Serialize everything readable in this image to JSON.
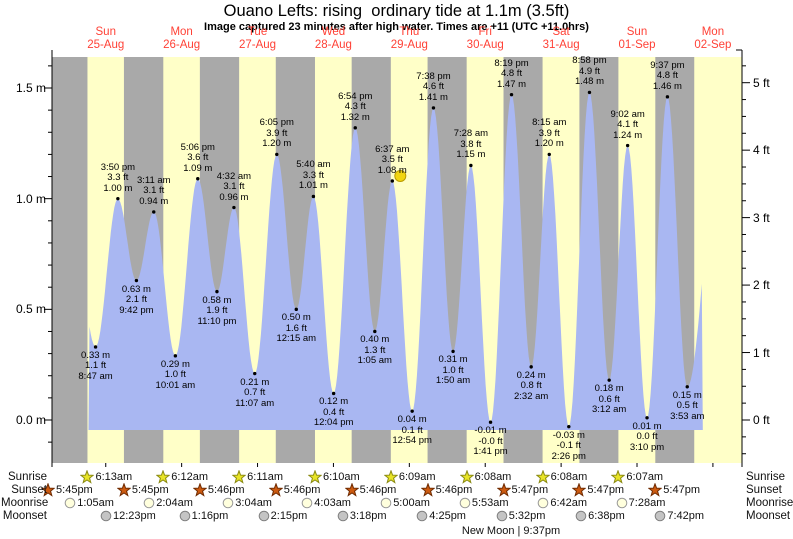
{
  "title": "Ouano Lefts: rising  ordinary tide at 1.1m (3.5ft)",
  "subtitle": "Image captured 23 minutes after high water. Times are +11 (UTC +11.0hrs)",
  "legend": {
    "sunrise": "Sunrise",
    "sunset": "Sunset",
    "moonrise": "Moonrise",
    "moonset": "Moonset",
    "new_moon": "New Moon | 9:37pm"
  },
  "colors": {
    "night_band": "#a9a9a9",
    "day_band": "#ffffc8",
    "tide_fill": "#a9b7f2",
    "day_label_red": "#ff4136",
    "current_marker": "#f1d511",
    "sunrise_star": "#e8e426",
    "sunset_star": "#cc5a10",
    "moonrise_circle": "#ffffdd",
    "moonset_circle": "#c4c4c4"
  },
  "chart_data": {
    "type": "area",
    "title": "Ouano Lefts: rising  ordinary tide at 1.1m (3.5ft)",
    "t_unit": "hours since 25-Aug 00:00 (+11)",
    "ylim_m": [
      -0.19,
      1.64
    ],
    "grid": false,
    "days": [
      {
        "dow": "Sun",
        "date": "25-Aug"
      },
      {
        "dow": "Mon",
        "date": "26-Aug"
      },
      {
        "dow": "Tue",
        "date": "27-Aug"
      },
      {
        "dow": "Wed",
        "date": "28-Aug"
      },
      {
        "dow": "Thu",
        "date": "29-Aug"
      },
      {
        "dow": "Fri",
        "date": "30-Aug"
      },
      {
        "dow": "Sat",
        "date": "31-Aug"
      },
      {
        "dow": "Sun",
        "date": "01-Sep"
      },
      {
        "dow": "Mon",
        "date": "02-Sep"
      }
    ],
    "y_axis_left_ticks": [
      {
        "label": "0.0 m",
        "h": 0.0
      },
      {
        "label": "0.5 m",
        "h": 0.5
      },
      {
        "label": "1.0 m",
        "h": 1.0
      },
      {
        "label": "1.5 m",
        "h": 1.5
      }
    ],
    "y_axis_right_ticks": [
      {
        "label": "0 ft",
        "ft": 0
      },
      {
        "label": "1 ft",
        "ft": 1
      },
      {
        "label": "2 ft",
        "ft": 2
      },
      {
        "label": "3 ft",
        "ft": 3
      },
      {
        "label": "4 ft",
        "ft": 4
      },
      {
        "label": "5 ft",
        "ft": 5
      }
    ],
    "tide_events": [
      {
        "type": "L",
        "time": "8:47 am",
        "m": "0.33 m",
        "ft": "1.1 ft",
        "t": 8.783,
        "h": 0.33
      },
      {
        "type": "H",
        "time": "3:50 pm",
        "m": "1.00 m",
        "ft": "3.3 ft",
        "t": 15.833,
        "h": 1.0
      },
      {
        "type": "L",
        "time": "9:42 pm",
        "m": "0.63 m",
        "ft": "2.1 ft",
        "t": 21.7,
        "h": 0.63
      },
      {
        "type": "H",
        "time": "3:11 am",
        "m": "0.94 m",
        "ft": "3.1 ft",
        "t": 27.183,
        "h": 0.94
      },
      {
        "type": "L",
        "time": "10:01 am",
        "m": "0.29 m",
        "ft": "1.0 ft",
        "t": 34.017,
        "h": 0.29
      },
      {
        "type": "H",
        "time": "5:06 pm",
        "m": "1.09 m",
        "ft": "3.6 ft",
        "t": 41.1,
        "h": 1.09
      },
      {
        "type": "L",
        "time": "11:10 pm",
        "m": "0.58 m",
        "ft": "1.9 ft",
        "t": 47.167,
        "h": 0.58
      },
      {
        "type": "H",
        "time": "4:32 am",
        "m": "0.96 m",
        "ft": "3.1 ft",
        "t": 52.533,
        "h": 0.96
      },
      {
        "type": "L",
        "time": "11:07 am",
        "m": "0.21 m",
        "ft": "0.7 ft",
        "t": 59.117,
        "h": 0.21
      },
      {
        "type": "H",
        "time": "6:05 pm",
        "m": "1.20 m",
        "ft": "3.9 ft",
        "t": 66.083,
        "h": 1.2
      },
      {
        "type": "L",
        "time": "12:15 am",
        "m": "0.50 m",
        "ft": "1.6 ft",
        "t": 72.25,
        "h": 0.5
      },
      {
        "type": "H",
        "time": "5:40 am",
        "m": "1.01 m",
        "ft": "3.3 ft",
        "t": 77.667,
        "h": 1.01
      },
      {
        "type": "L",
        "time": "12:04 pm",
        "m": "0.12 m",
        "ft": "0.4 ft",
        "t": 84.067,
        "h": 0.12
      },
      {
        "type": "H",
        "time": "6:54 pm",
        "m": "1.32 m",
        "ft": "4.3 ft",
        "t": 90.9,
        "h": 1.32
      },
      {
        "type": "L",
        "time": "1:05 am",
        "m": "0.40 m",
        "ft": "1.3 ft",
        "t": 97.083,
        "h": 0.4
      },
      {
        "type": "H",
        "time": "6:37 am",
        "m": "1.08 m",
        "ft": "3.5 ft",
        "t": 102.617,
        "h": 1.08,
        "current": true
      },
      {
        "type": "L",
        "time": "12:54 pm",
        "m": "0.04 m",
        "ft": "0.1 ft",
        "t": 108.9,
        "h": 0.04
      },
      {
        "type": "H",
        "time": "7:38 pm",
        "m": "1.41 m",
        "ft": "4.6 ft",
        "t": 115.633,
        "h": 1.41
      },
      {
        "type": "L",
        "time": "1:50 am",
        "m": "0.31 m",
        "ft": "1.0 ft",
        "t": 121.833,
        "h": 0.31
      },
      {
        "type": "H",
        "time": "7:28 am",
        "m": "1.15 m",
        "ft": "3.8 ft",
        "t": 127.467,
        "h": 1.15
      },
      {
        "type": "L",
        "time": "1:41 pm",
        "m": "-0.01 m",
        "ft": "-0.0 ft",
        "t": 133.683,
        "h": -0.01
      },
      {
        "type": "H",
        "time": "8:19 pm",
        "m": "1.47 m",
        "ft": "4.8 ft",
        "t": 140.317,
        "h": 1.47
      },
      {
        "type": "L",
        "time": "2:32 am",
        "m": "0.24 m",
        "ft": "0.8 ft",
        "t": 146.533,
        "h": 0.24
      },
      {
        "type": "H",
        "time": "8:15 am",
        "m": "1.20 m",
        "ft": "3.9 ft",
        "t": 152.25,
        "h": 1.2
      },
      {
        "type": "L",
        "time": "2:26 pm",
        "m": "-0.03 m",
        "ft": "-0.1 ft",
        "t": 158.433,
        "h": -0.03
      },
      {
        "type": "H",
        "time": "8:58 pm",
        "m": "1.48 m",
        "ft": "4.9 ft",
        "t": 164.967,
        "h": 1.48
      },
      {
        "type": "L",
        "time": "3:12 am",
        "m": "0.18 m",
        "ft": "0.6 ft",
        "t": 171.2,
        "h": 0.18
      },
      {
        "type": "H",
        "time": "9:02 am",
        "m": "1.24 m",
        "ft": "4.1 ft",
        "t": 177.033,
        "h": 1.24
      },
      {
        "type": "L",
        "time": "3:10 pm",
        "m": "0.01 m",
        "ft": "0.0 ft",
        "t": 183.167,
        "h": 0.01
      },
      {
        "type": "H",
        "time": "9:37 pm",
        "m": "1.46 m",
        "ft": "4.8 ft",
        "t": 189.617,
        "h": 1.46
      },
      {
        "type": "L",
        "time": "3:53 am",
        "m": "0.15 m",
        "ft": "0.5 ft",
        "t": 195.883,
        "h": 0.15
      }
    ],
    "sun_moon": {
      "sunrise": [
        {
          "time": "6:13am",
          "t": 6.217
        },
        {
          "time": "6:12am",
          "t": 30.2
        },
        {
          "time": "6:11am",
          "t": 54.183
        },
        {
          "time": "6:10am",
          "t": 78.167
        },
        {
          "time": "6:09am",
          "t": 102.15
        },
        {
          "time": "6:08am",
          "t": 126.133
        },
        {
          "time": "6:08am",
          "t": 150.133
        },
        {
          "time": "6:07am",
          "t": 174.117
        }
      ],
      "sunset": [
        {
          "time": "5:45pm",
          "t": -6.25
        },
        {
          "time": "5:45pm",
          "t": 17.75
        },
        {
          "time": "5:46pm",
          "t": 41.767
        },
        {
          "time": "5:46pm",
          "t": 65.767
        },
        {
          "time": "5:46pm",
          "t": 89.767
        },
        {
          "time": "5:46pm",
          "t": 113.767
        },
        {
          "time": "5:47pm",
          "t": 137.783
        },
        {
          "time": "5:47pm",
          "t": 161.783
        },
        {
          "time": "5:47pm",
          "t": 185.783
        }
      ],
      "moonrise": [
        {
          "time": "1:05am",
          "t": 1.083
        },
        {
          "time": "2:04am",
          "t": 26.067
        },
        {
          "time": "3:04am",
          "t": 51.067
        },
        {
          "time": "4:03am",
          "t": 76.05
        },
        {
          "time": "5:00am",
          "t": 101.0
        },
        {
          "time": "5:53am",
          "t": 125.883
        },
        {
          "time": "6:42am",
          "t": 150.7
        },
        {
          "time": "7:28am",
          "t": 175.467
        }
      ],
      "moonset": [
        {
          "time": "12:23pm",
          "t": 12.383
        },
        {
          "time": "1:16pm",
          "t": 37.267
        },
        {
          "time": "2:15pm",
          "t": 62.25
        },
        {
          "time": "3:18pm",
          "t": 87.3
        },
        {
          "time": "4:25pm",
          "t": 112.417
        },
        {
          "time": "5:32pm",
          "t": 137.533
        },
        {
          "time": "6:38pm",
          "t": 162.633
        },
        {
          "time": "7:42pm",
          "t": 187.7
        }
      ],
      "new_moon": "New Moon | 9:37pm"
    }
  }
}
